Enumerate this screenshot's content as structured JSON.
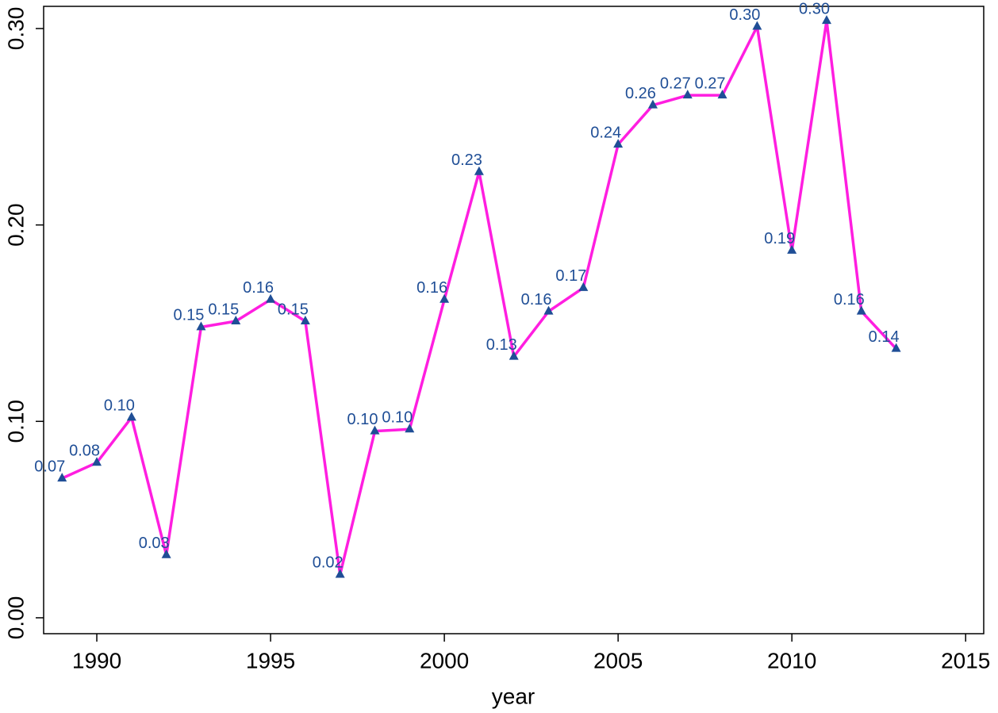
{
  "chart_data": {
    "type": "line",
    "x_label": "year",
    "x": [
      1989,
      1990,
      1991,
      1992,
      1993,
      1994,
      1995,
      1996,
      1997,
      1998,
      1999,
      2000,
      2001,
      2002,
      2003,
      2004,
      2005,
      2006,
      2007,
      2008,
      2009,
      2010,
      2011,
      2012,
      2013
    ],
    "series": [
      {
        "color": "#ff1ee0",
        "marker_color": "#1f4e96",
        "values": [
          0.071,
          0.079,
          0.102,
          0.032,
          0.148,
          0.151,
          0.162,
          0.151,
          0.022,
          0.095,
          0.096,
          0.162,
          0.227,
          0.133,
          0.156,
          0.168,
          0.241,
          0.261,
          0.266,
          0.266,
          0.301,
          0.187,
          0.304,
          0.156,
          0.137
        ],
        "value_labels": [
          "0.07",
          "0.08",
          "0.10",
          "0.03",
          "0.15",
          "0.15",
          "0.16",
          "0.15",
          "0.02",
          "0.10",
          "0.10",
          "0.16",
          "0.23",
          "0.13",
          "0.16",
          "0.17",
          "0.24",
          "0.26",
          "0.27",
          "0.27",
          "0.30",
          "0.19",
          "0.30",
          "0.16",
          "0.14"
        ]
      }
    ],
    "xlim": [
      1988.47,
      2015.52
    ],
    "xticks": [
      1990,
      1995,
      2000,
      2005,
      2010,
      2015
    ],
    "ylim": [
      -0.0081,
      0.3113
    ],
    "yticks": [
      {
        "value": 0,
        "label": "0.00"
      },
      {
        "value": 0.1,
        "label": "0.10"
      },
      {
        "value": 0.2,
        "label": "0.20"
      },
      {
        "value": 0.3,
        "label": "0.30"
      }
    ]
  }
}
